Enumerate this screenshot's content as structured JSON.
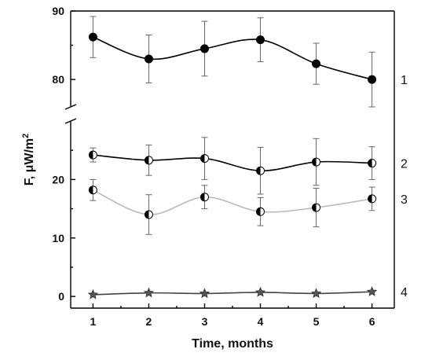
{
  "chart_data": {
    "type": "line",
    "xlabel": "Time, months",
    "ylabel": {
      "main": "F, ",
      "mu": "μ",
      "unit": "W/m",
      "sup": "2"
    },
    "x": [
      1,
      2,
      3,
      4,
      5,
      6
    ],
    "xticks": [
      "1",
      "2",
      "3",
      "4",
      "5",
      "6"
    ],
    "xlim": [
      0.6,
      6.4
    ],
    "axis_break": {
      "lower_range": [
        -2,
        30
      ],
      "upper_range": [
        76,
        90
      ]
    },
    "yticks_lower": [
      0,
      10,
      20
    ],
    "yticks_upper": [
      80,
      90
    ],
    "ytick_labels": [
      "0",
      "10",
      "20",
      "80",
      "90"
    ],
    "series": [
      {
        "name": "1",
        "marker": "filled-circle",
        "line_color": "#000000",
        "values": [
          86.2,
          83.0,
          84.5,
          85.8,
          82.3,
          80.0
        ],
        "errors": [
          3.0,
          3.5,
          4.0,
          3.2,
          3.0,
          4.0
        ]
      },
      {
        "name": "2",
        "marker": "half-filled-circle",
        "line_color": "#000000",
        "values": [
          24.2,
          23.3,
          23.6,
          21.5,
          23.0,
          22.8
        ],
        "errors": [
          1.2,
          2.6,
          3.6,
          4.0,
          4.0,
          2.8
        ]
      },
      {
        "name": "3",
        "marker": "half-filled-circle",
        "line_color": "#bbbbbb",
        "values": [
          18.2,
          14.0,
          17.0,
          14.5,
          15.2,
          16.7
        ],
        "errors": [
          1.8,
          3.4,
          2.0,
          2.4,
          3.3,
          2.0
        ]
      },
      {
        "name": "4",
        "marker": "star",
        "line_color": "#444444",
        "values": [
          0.3,
          0.6,
          0.5,
          0.7,
          0.5,
          0.8
        ],
        "errors": [
          0,
          0,
          0,
          0,
          0,
          0
        ]
      }
    ],
    "grid": false,
    "legend": "labels at right end of each series"
  }
}
